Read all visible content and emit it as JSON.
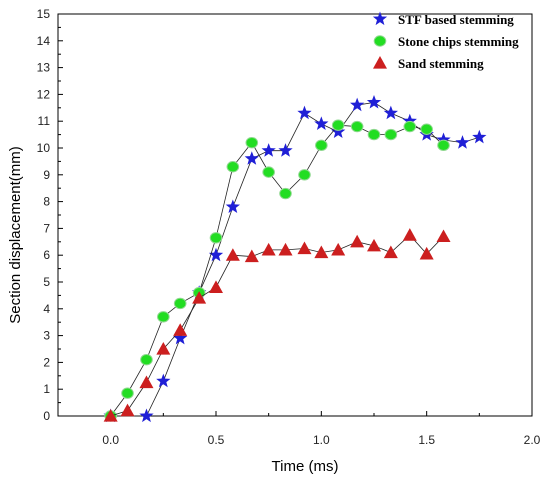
{
  "chart_data": {
    "type": "scatter",
    "xlabel": "Time (ms)",
    "ylabel": "Section displacement(mm)",
    "xlim": [
      -0.25,
      2.0
    ],
    "ylim": [
      0,
      15
    ],
    "x_ticks": [
      "0.0",
      "0.5",
      "1.0",
      "1.5",
      "2.0"
    ],
    "y_ticks": [
      "0",
      "1",
      "2",
      "3",
      "4",
      "5",
      "6",
      "7",
      "8",
      "9",
      "10",
      "11",
      "12",
      "13",
      "14",
      "15"
    ],
    "legend_position": "top-right",
    "series": [
      {
        "name": "STF based stemming",
        "marker": "star",
        "color": "#1f1fd6",
        "points": [
          [
            0.0,
            0.0
          ],
          [
            0.17,
            0.0
          ],
          [
            0.25,
            1.3
          ],
          [
            0.33,
            2.9
          ],
          [
            0.42,
            4.6
          ],
          [
            0.5,
            6.0
          ],
          [
            0.58,
            7.8
          ],
          [
            0.67,
            9.6
          ],
          [
            0.75,
            9.9
          ],
          [
            0.83,
            9.9
          ],
          [
            0.92,
            11.3
          ],
          [
            1.0,
            10.9
          ],
          [
            1.08,
            10.6
          ],
          [
            1.17,
            11.6
          ],
          [
            1.25,
            11.7
          ],
          [
            1.33,
            11.3
          ],
          [
            1.42,
            11.0
          ],
          [
            1.5,
            10.5
          ],
          [
            1.58,
            10.3
          ],
          [
            1.67,
            10.2
          ],
          [
            1.75,
            10.4
          ]
        ]
      },
      {
        "name": "Stone chips stemming",
        "marker": "circle",
        "color": "#22dd22",
        "points": [
          [
            0.0,
            0.0
          ],
          [
            0.08,
            0.85
          ],
          [
            0.17,
            2.1
          ],
          [
            0.25,
            3.7
          ],
          [
            0.33,
            4.2
          ],
          [
            0.42,
            4.6
          ],
          [
            0.5,
            6.65
          ],
          [
            0.58,
            9.3
          ],
          [
            0.67,
            10.2
          ],
          [
            0.75,
            9.1
          ],
          [
            0.83,
            8.3
          ],
          [
            0.92,
            9.0
          ],
          [
            1.0,
            10.1
          ],
          [
            1.08,
            10.85
          ],
          [
            1.17,
            10.8
          ],
          [
            1.25,
            10.5
          ],
          [
            1.33,
            10.5
          ],
          [
            1.42,
            10.8
          ],
          [
            1.5,
            10.7
          ],
          [
            1.58,
            10.1
          ]
        ]
      },
      {
        "name": "Sand stemming",
        "marker": "triangle",
        "color": "#cc1f1f",
        "points": [
          [
            0.0,
            0.0
          ],
          [
            0.08,
            0.2
          ],
          [
            0.17,
            1.25
          ],
          [
            0.25,
            2.5
          ],
          [
            0.33,
            3.2
          ],
          [
            0.42,
            4.4
          ],
          [
            0.5,
            4.8
          ],
          [
            0.58,
            6.0
          ],
          [
            0.67,
            5.95
          ],
          [
            0.75,
            6.2
          ],
          [
            0.83,
            6.2
          ],
          [
            0.92,
            6.25
          ],
          [
            1.0,
            6.1
          ],
          [
            1.08,
            6.2
          ],
          [
            1.17,
            6.5
          ],
          [
            1.25,
            6.35
          ],
          [
            1.33,
            6.1
          ],
          [
            1.42,
            6.75
          ],
          [
            1.5,
            6.05
          ],
          [
            1.58,
            6.7
          ]
        ]
      }
    ]
  }
}
